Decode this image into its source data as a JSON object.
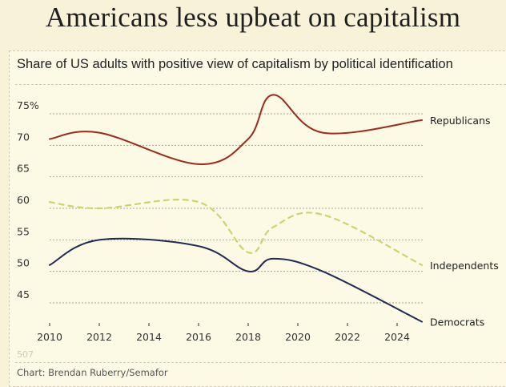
{
  "title": "Americans less upbeat on capitalism",
  "subtitle": "Share of US adults with positive view of capitalism by political identification",
  "ghost_number": "507",
  "credit": "Chart: Brendan Ruberry/Semafor",
  "chart_data": {
    "type": "line",
    "title": "Americans less upbeat on capitalism",
    "subtitle": "Share of US adults with positive view of capitalism by political identification",
    "xlabel": "",
    "ylabel": "",
    "x": [
      2010,
      2012,
      2016,
      2018,
      2019,
      2021,
      2025
    ],
    "xlim": [
      2010,
      2025
    ],
    "ylim": [
      45,
      75
    ],
    "x_ticks": [
      2010,
      2012,
      2014,
      2016,
      2018,
      2020,
      2022,
      2024
    ],
    "x_tick_labels": [
      "2010",
      "2012",
      "2014",
      "2016",
      "2018",
      "2020",
      "2022",
      "2024"
    ],
    "y_ticks": [
      45,
      50,
      55,
      60,
      65,
      70,
      75
    ],
    "y_tick_labels": [
      "45",
      "50",
      "55",
      "60",
      "65",
      "70",
      "75%"
    ],
    "grid": true,
    "legend": "direct labels at line ends (right)",
    "series": [
      {
        "name": "Republicans",
        "color": "#9e2a1c",
        "style": "solid",
        "values": [
          71,
          72,
          67,
          71,
          78,
          72,
          74
        ]
      },
      {
        "name": "Independents",
        "color": "#c9d66a",
        "style": "dashed",
        "values": [
          61,
          60,
          61,
          53,
          57,
          59,
          51
        ]
      },
      {
        "name": "Democrats",
        "color": "#1e2a55",
        "style": "solid",
        "values": [
          51,
          55,
          54,
          50,
          52,
          50,
          42
        ]
      }
    ]
  }
}
